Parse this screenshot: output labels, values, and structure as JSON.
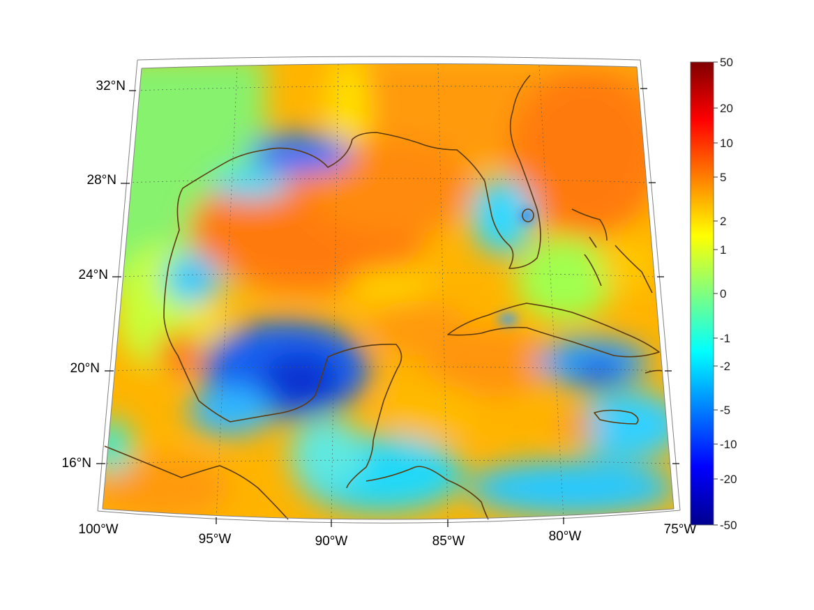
{
  "map": {
    "projection": "lambert-conformal",
    "extent": {
      "lon_min": -100,
      "lon_max": -75,
      "lat_min": 14,
      "lat_max": 33
    },
    "graticule_style": "dotted",
    "coastline_color": "#5a3a0e"
  },
  "axes": {
    "lon_labels": [
      {
        "text": "100°W",
        "lon": -100
      },
      {
        "text": "95°W",
        "lon": -95
      },
      {
        "text": "90°W",
        "lon": -90
      },
      {
        "text": "85°W",
        "lon": -85
      },
      {
        "text": "80°W",
        "lon": -80
      },
      {
        "text": "75°W",
        "lon": -75
      }
    ],
    "lat_labels": [
      {
        "text": "32°N",
        "lat": 32
      },
      {
        "text": "28°N",
        "lat": 28
      },
      {
        "text": "24°N",
        "lat": 24
      },
      {
        "text": "20°N",
        "lat": 20
      },
      {
        "text": "16°N",
        "lat": 16
      }
    ]
  },
  "colorbar": {
    "colormap": "jet",
    "scale": "symmetric-log",
    "range": [
      -50,
      50
    ],
    "ticks": [
      "50",
      "20",
      "10",
      "5",
      "2",
      "1",
      "0",
      "-1",
      "-2",
      "-5",
      "-10",
      "-20",
      "-50"
    ]
  }
}
